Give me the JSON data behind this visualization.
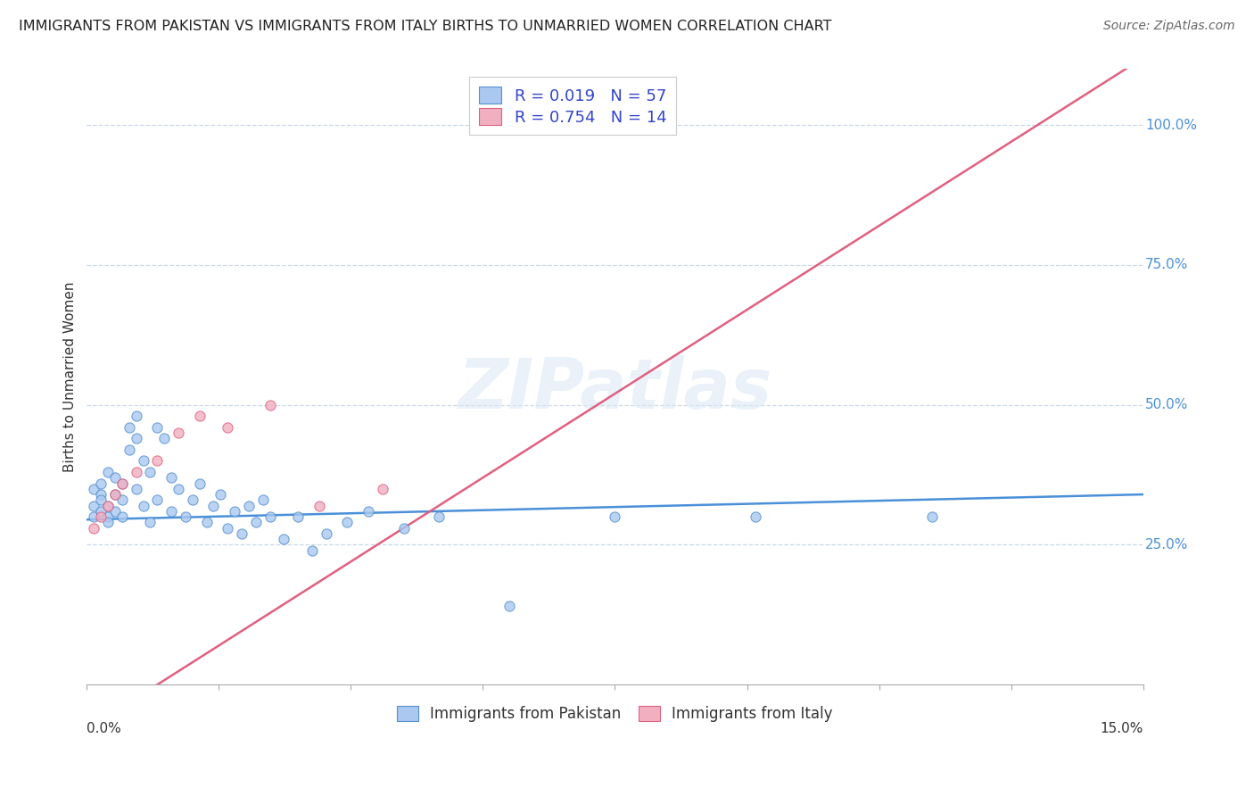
{
  "title": "IMMIGRANTS FROM PAKISTAN VS IMMIGRANTS FROM ITALY BIRTHS TO UNMARRIED WOMEN CORRELATION CHART",
  "source": "Source: ZipAtlas.com",
  "ylabel": "Births to Unmarried Women",
  "ytick_labels": [
    "25.0%",
    "50.0%",
    "75.0%",
    "100.0%"
  ],
  "ytick_values": [
    0.25,
    0.5,
    0.75,
    1.0
  ],
  "xlim": [
    0.0,
    0.15
  ],
  "ylim": [
    0.0,
    1.1
  ],
  "legend_r1": "R = 0.019   N = 57",
  "legend_r2": "R = 0.754   N = 14",
  "pakistan_fill": "#aac8f0",
  "pakistan_edge": "#5590d0",
  "italy_fill": "#f0b0c0",
  "italy_edge": "#e06080",
  "pakistan_line": "#4a90d9",
  "italy_line": "#e06080",
  "grid_color": "#c8d8e8",
  "background": "#ffffff",
  "pakistan_scatter_x": [
    0.001,
    0.001,
    0.001,
    0.002,
    0.002,
    0.002,
    0.002,
    0.003,
    0.003,
    0.003,
    0.003,
    0.004,
    0.004,
    0.004,
    0.005,
    0.005,
    0.005,
    0.006,
    0.006,
    0.007,
    0.007,
    0.007,
    0.008,
    0.008,
    0.009,
    0.009,
    0.01,
    0.01,
    0.011,
    0.012,
    0.012,
    0.013,
    0.014,
    0.015,
    0.016,
    0.017,
    0.018,
    0.019,
    0.02,
    0.021,
    0.022,
    0.023,
    0.024,
    0.025,
    0.026,
    0.028,
    0.03,
    0.032,
    0.034,
    0.037,
    0.04,
    0.045,
    0.05,
    0.06,
    0.075,
    0.095,
    0.12
  ],
  "pakistan_scatter_y": [
    0.32,
    0.35,
    0.3,
    0.34,
    0.33,
    0.31,
    0.36,
    0.3,
    0.32,
    0.29,
    0.38,
    0.31,
    0.34,
    0.37,
    0.33,
    0.3,
    0.36,
    0.46,
    0.42,
    0.44,
    0.48,
    0.35,
    0.4,
    0.32,
    0.38,
    0.29,
    0.33,
    0.46,
    0.44,
    0.37,
    0.31,
    0.35,
    0.3,
    0.33,
    0.36,
    0.29,
    0.32,
    0.34,
    0.28,
    0.31,
    0.27,
    0.32,
    0.29,
    0.33,
    0.3,
    0.26,
    0.3,
    0.24,
    0.27,
    0.29,
    0.31,
    0.28,
    0.3,
    0.14,
    0.3,
    0.3,
    0.3
  ],
  "italy_scatter_x": [
    0.001,
    0.002,
    0.003,
    0.004,
    0.005,
    0.007,
    0.01,
    0.013,
    0.016,
    0.02,
    0.026,
    0.033,
    0.042,
    0.068
  ],
  "italy_scatter_y": [
    0.28,
    0.3,
    0.32,
    0.34,
    0.36,
    0.38,
    0.4,
    0.45,
    0.48,
    0.46,
    0.5,
    0.32,
    0.35,
    1.01
  ],
  "pak_line_slope": 0.3,
  "pak_line_intercept": 0.295,
  "ita_line_slope": 8.0,
  "ita_line_intercept": -0.08
}
